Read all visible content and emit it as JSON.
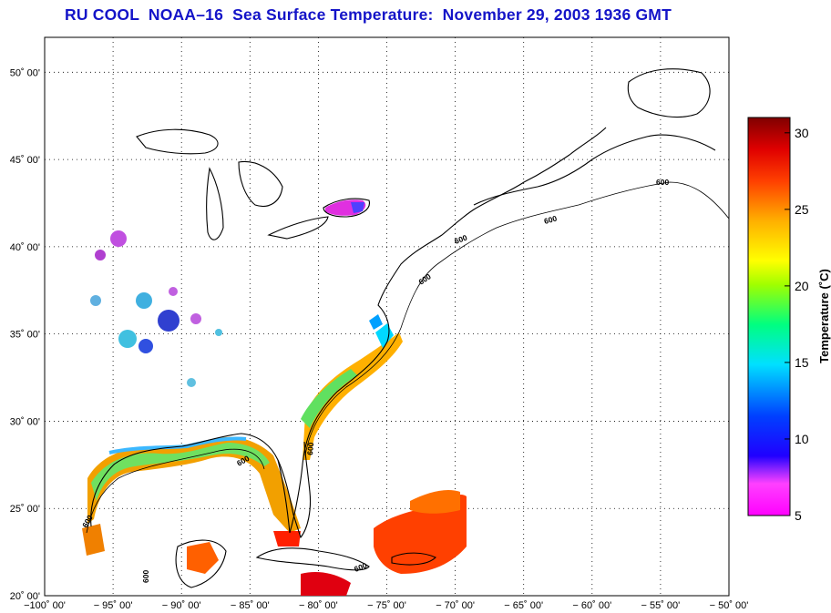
{
  "title": {
    "text": "RU COOL  NOAA–16  Sea Surface Temperature:  November 29, 2003 1936 GMT",
    "color": "#1414c8"
  },
  "map": {
    "lon_range": [
      -100,
      -50
    ],
    "lat_range": [
      20,
      52
    ],
    "grid": "dotted",
    "lat_labels": [
      "50˚ 00'",
      "45˚ 00'",
      "40˚ 00'",
      "35˚ 00'",
      "30˚ 00'",
      "25˚ 00'",
      "20˚ 00'"
    ],
    "lat_values": [
      50,
      45,
      40,
      35,
      30,
      25,
      20
    ],
    "lon_labels": [
      "−100˚ 00'",
      "− 95˚ 00'",
      "− 90˚ 00'",
      "− 85˚ 00'",
      "− 80˚ 00'",
      "− 75˚ 00'",
      "− 70˚ 00'",
      "− 65˚ 00'",
      "− 60˚ 00'",
      "− 55˚ 00'",
      "− 50˚ 00'"
    ],
    "lon_values": [
      -100,
      -95,
      -90,
      -85,
      -80,
      -75,
      -70,
      -65,
      -60,
      -55,
      -50
    ],
    "isobath_label": "600"
  },
  "colorbar": {
    "title": "Temperature (˚C)",
    "range": [
      5,
      31
    ],
    "tick_labels": [
      "30",
      "25",
      "20",
      "15",
      "10",
      "5"
    ],
    "tick_values": [
      30,
      25,
      20,
      15,
      10,
      5
    ],
    "colors": [
      "#ff00ff",
      "#8000ff",
      "#0000ff",
      "#0080ff",
      "#00ffff",
      "#00ff80",
      "#80ff00",
      "#ffff00",
      "#ffa000",
      "#ff4000",
      "#e00000",
      "#800000"
    ]
  }
}
